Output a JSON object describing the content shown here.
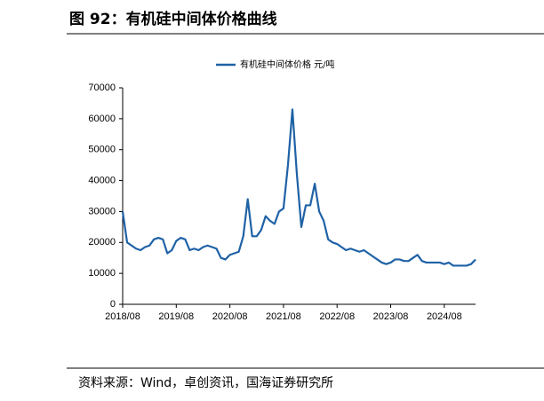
{
  "chart_data": {
    "type": "line",
    "title": "图 92：有机硅中间体价格曲线",
    "source": "资料来源：Wind，卓创资讯，国海证券研究所",
    "x": [
      "2018/08",
      "2018/09",
      "2018/10",
      "2018/11",
      "2018/12",
      "2019/01",
      "2019/02",
      "2019/03",
      "2019/04",
      "2019/05",
      "2019/06",
      "2019/07",
      "2019/08",
      "2019/09",
      "2019/10",
      "2019/11",
      "2019/12",
      "2020/01",
      "2020/02",
      "2020/03",
      "2020/04",
      "2020/05",
      "2020/06",
      "2020/07",
      "2020/08",
      "2020/09",
      "2020/10",
      "2020/11",
      "2020/12",
      "2021/01",
      "2021/02",
      "2021/03",
      "2021/04",
      "2021/05",
      "2021/06",
      "2021/07",
      "2021/08",
      "2021/09",
      "2021/10",
      "2021/11",
      "2021/12",
      "2022/01",
      "2022/02",
      "2022/03",
      "2022/04",
      "2022/05",
      "2022/06",
      "2022/07",
      "2022/08",
      "2022/09",
      "2022/10",
      "2022/11",
      "2022/12",
      "2023/01",
      "2023/02",
      "2023/03",
      "2023/04",
      "2023/05",
      "2023/06",
      "2023/07",
      "2023/08",
      "2023/09",
      "2023/10",
      "2023/11",
      "2023/12",
      "2024/01",
      "2024/02",
      "2024/03",
      "2024/04",
      "2024/05",
      "2024/06",
      "2024/07",
      "2024/08",
      "2024/09",
      "2024/10",
      "2024/11",
      "2024/12",
      "2025/01",
      "2025/02",
      "2025/03"
    ],
    "series": [
      {
        "name": "有机硅中间体价格 元/吨",
        "color": "#1f62a6",
        "values": [
          30000,
          20000,
          19000,
          18000,
          17500,
          18500,
          19000,
          21000,
          21500,
          21000,
          16500,
          17500,
          20500,
          21500,
          21000,
          17500,
          18000,
          17500,
          18500,
          19000,
          18500,
          18000,
          15000,
          14500,
          16000,
          16500,
          17000,
          22000,
          34000,
          22000,
          22000,
          24000,
          28500,
          27000,
          26000,
          30000,
          31000,
          45000,
          63000,
          42000,
          25000,
          32000,
          32000,
          39000,
          30000,
          27000,
          21000,
          20000,
          19500,
          18500,
          17500,
          18000,
          17500,
          17000,
          17500,
          16500,
          15500,
          14500,
          13500,
          13000,
          13500,
          14500,
          14500,
          14000,
          14000,
          15000,
          16000,
          14000,
          13500,
          13500,
          13500,
          13500,
          13000,
          13500,
          12500,
          12500,
          12500,
          12500,
          13000,
          14500
        ]
      }
    ],
    "xlim": [
      "2018/08",
      "2025/03"
    ],
    "xticks": [
      "2018/08",
      "2019/08",
      "2020/08",
      "2021/08",
      "2022/08",
      "2023/08",
      "2024/08"
    ],
    "ylim": [
      0,
      70000
    ],
    "yticks": [
      0,
      10000,
      20000,
      30000,
      40000,
      50000,
      60000,
      70000
    ]
  }
}
